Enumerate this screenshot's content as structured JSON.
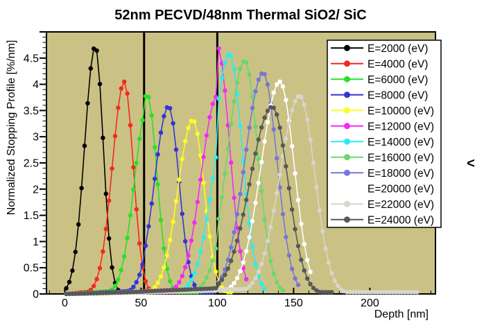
{
  "title": "52nm PECVD/48nm Thermal SiO2/ SiC",
  "stray_glyph": "<",
  "colors": {
    "page_bg": "#ffffff",
    "plot_bg": "#cac284",
    "frame": "#000000",
    "legend_bg": "#ffffff",
    "interface_line": "#000000"
  },
  "interface_lines_nm": [
    52,
    100
  ],
  "axes": {
    "x": {
      "label": "Depth [nm]",
      "range": [
        -12,
        243
      ],
      "minor_step": 10,
      "ticks": [
        {
          "v": 0,
          "label": "0"
        },
        {
          "v": 50,
          "label": "50"
        },
        {
          "v": 100,
          "label": "100"
        },
        {
          "v": 150,
          "label": "150"
        },
        {
          "v": 200,
          "label": "200"
        }
      ]
    },
    "y": {
      "label": "Normalized Stopping Profile [%/nm]",
      "range": [
        0,
        5
      ],
      "minor_step": 0.1,
      "ticks": [
        {
          "v": 0,
          "label": "0"
        },
        {
          "v": 0.5,
          "label": "0.5"
        },
        {
          "v": 1,
          "label": "1"
        },
        {
          "v": 1.5,
          "label": "1.5"
        },
        {
          "v": 2,
          "label": "2"
        },
        {
          "v": 2.5,
          "label": "2.5"
        },
        {
          "v": 3,
          "label": "3"
        },
        {
          "v": 3.5,
          "label": "3.5"
        },
        {
          "v": 4,
          "label": "4"
        },
        {
          "v": 4.5,
          "label": "4.5"
        }
      ]
    }
  },
  "chart_data": {
    "type": "line",
    "subtype": "marker-curves",
    "marker": "filled-circle",
    "bin_width_nm": 2,
    "title": "52nm PECVD/48nm Thermal SiO2/ SiC",
    "xlabel": "Depth [nm]",
    "ylabel": "Normalized Stopping Profile [%/nm]",
    "xlim": [
      -12,
      243
    ],
    "ylim": [
      0,
      5
    ],
    "legend_position": "top-right",
    "tail_value": 0.035,
    "series": [
      {
        "label": "E=2000 (eV)",
        "color": "#000000",
        "peak_depth_nm": 20,
        "peak_value": 4.73,
        "sigma_left": 6.9,
        "sigma_right": 5.2,
        "tail_end_nm": 56,
        "f52": 1,
        "f100": 1,
        "foot": 0.03
      },
      {
        "label": "E=4000 (eV)",
        "color": "#f5281e",
        "peak_depth_nm": 39,
        "peak_value": 4.05,
        "sigma_left": 7.8,
        "sigma_right": 5.9,
        "tail_end_nm": 78,
        "f52": 1,
        "f100": 1,
        "foot": 0.03
      },
      {
        "label": "E=6000 (eV)",
        "color": "#28e028",
        "peak_depth_nm": 54,
        "peak_value": 3.8,
        "sigma_left": 8.4,
        "sigma_right": 6.4,
        "tail_end_nm": 90,
        "f52": 0.93,
        "f100": 1,
        "foot": 0.03
      },
      {
        "label": "E=8000 (eV)",
        "color": "#3434d8",
        "peak_depth_nm": 68,
        "peak_value": 3.58,
        "sigma_left": 9.1,
        "sigma_right": 6.9,
        "tail_end_nm": 98,
        "f52": 0.9,
        "f100": 1,
        "foot": 0.03
      },
      {
        "label": "E=10000 (eV)",
        "color": "#fcfc24",
        "peak_depth_nm": 84,
        "peak_value": 3.32,
        "sigma_left": 9.8,
        "sigma_right": 7.4,
        "tail_end_nm": 110,
        "f52": 0.88,
        "f100": 1,
        "foot": 0.03
      },
      {
        "label": "E=12000 (eV)",
        "color": "#f42af4",
        "peak_depth_nm": 100,
        "peak_value": 4.72,
        "sigma_left": 10.5,
        "sigma_right": 8.0,
        "tail_end_nm": 120,
        "f52": 0.72,
        "f100": 0.8,
        "foot": 0.03
      },
      {
        "label": "E=14000 (eV)",
        "color": "#2cecec",
        "peak_depth_nm": 108,
        "peak_value": 4.58,
        "sigma_left": 10.9,
        "sigma_right": 8.3,
        "tail_end_nm": 131,
        "f52": 0.72,
        "f100": 0.8,
        "foot": 0.03
      },
      {
        "label": "E=16000 (eV)",
        "color": "#6cd66c",
        "peak_depth_nm": 118,
        "peak_value": 4.45,
        "sigma_left": 11.3,
        "sigma_right": 8.6,
        "tail_end_nm": 143,
        "f52": 0.72,
        "f100": 0.8,
        "foot": 0.03
      },
      {
        "label": "E=18000 (eV)",
        "color": "#7676d6",
        "peak_depth_nm": 130,
        "peak_value": 4.22,
        "sigma_left": 11.9,
        "sigma_right": 9.1,
        "tail_end_nm": 154,
        "f52": 0.72,
        "f100": 0.8,
        "foot": 0.03
      },
      {
        "label": "E=20000 (eV)",
        "color": "#ffffff",
        "peak_depth_nm": 141,
        "peak_value": 4.05,
        "sigma_left": 12.3,
        "sigma_right": 9.4,
        "tail_end_nm": 162,
        "f52": 0.72,
        "f100": 0.8,
        "foot": 0.03
      },
      {
        "label": "E=22000 (eV)",
        "color": "#d9d5cc",
        "peak_depth_nm": 154,
        "peak_value": 3.78,
        "sigma_left": 12.9,
        "sigma_right": 9.9,
        "tail_end_nm": 231,
        "f52": 0.72,
        "f100": 0.8,
        "foot": 0.035
      },
      {
        "label": "E=24000 (eV)",
        "color": "#585858",
        "peak_depth_nm": 136,
        "peak_value": 3.57,
        "sigma_left": 14.5,
        "sigma_right": 10.3,
        "tail_end_nm": 176,
        "f52": 0.72,
        "f100": 0.8,
        "foot": 0.055
      }
    ]
  }
}
